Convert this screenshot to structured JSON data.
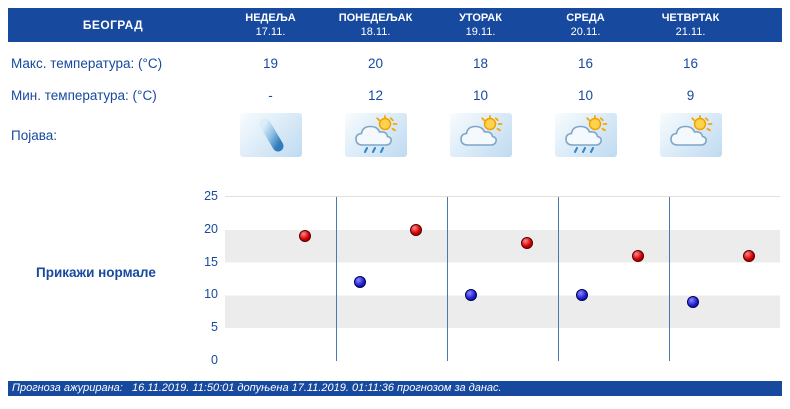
{
  "header": {
    "location": "БЕОГРАД",
    "days": [
      {
        "name": "НЕДЕЉА",
        "date": "17.11."
      },
      {
        "name": "ПОНЕДЕЉАК",
        "date": "18.11."
      },
      {
        "name": "УТОРАК",
        "date": "19.11."
      },
      {
        "name": "СРЕДА",
        "date": "20.11."
      },
      {
        "name": "ЧЕТВРТАК",
        "date": "21.11."
      }
    ]
  },
  "rows": {
    "max_label": "Макс. температура: (°C)",
    "max_values": [
      "19",
      "20",
      "18",
      "16",
      "16"
    ],
    "min_label": "Мин. температура: (°C)",
    "min_values": [
      "-",
      "12",
      "10",
      "10",
      "9"
    ],
    "phenomena_label": "Појава:",
    "phenomena_icons": [
      "diagonal-arrow",
      "sun-cloud-drizzle",
      "sun-cloud",
      "sun-cloud-drizzle",
      "sun-cloud"
    ]
  },
  "chart_link": "Прикажи нормале",
  "footer": "Прогноза ажурирана:   16.11.2019. 11:50:01 допуњена 17.11.2019. 01:11:36 прогнозом за данас.",
  "colors": {
    "accent_blue": "#17499e",
    "max_dot": "#cc0000",
    "min_dot": "#1a1acc"
  },
  "chart_data": {
    "type": "scatter",
    "categories": [
      "17.11.",
      "18.11.",
      "19.11.",
      "20.11.",
      "21.11."
    ],
    "series": [
      {
        "name": "Макс. температура (°C)",
        "color": "#cc0000",
        "values": [
          19,
          20,
          18,
          16,
          16
        ]
      },
      {
        "name": "Мин. температура (°C)",
        "color": "#1a1acc",
        "values": [
          null,
          12,
          10,
          10,
          9
        ]
      }
    ],
    "title": "",
    "xlabel": "",
    "ylabel": "",
    "ylim": [
      0,
      25
    ],
    "yticks": [
      0,
      5,
      10,
      15,
      20,
      25
    ],
    "grid": "vertical-day-separators, horizontal alternating bands",
    "legend": "none"
  }
}
